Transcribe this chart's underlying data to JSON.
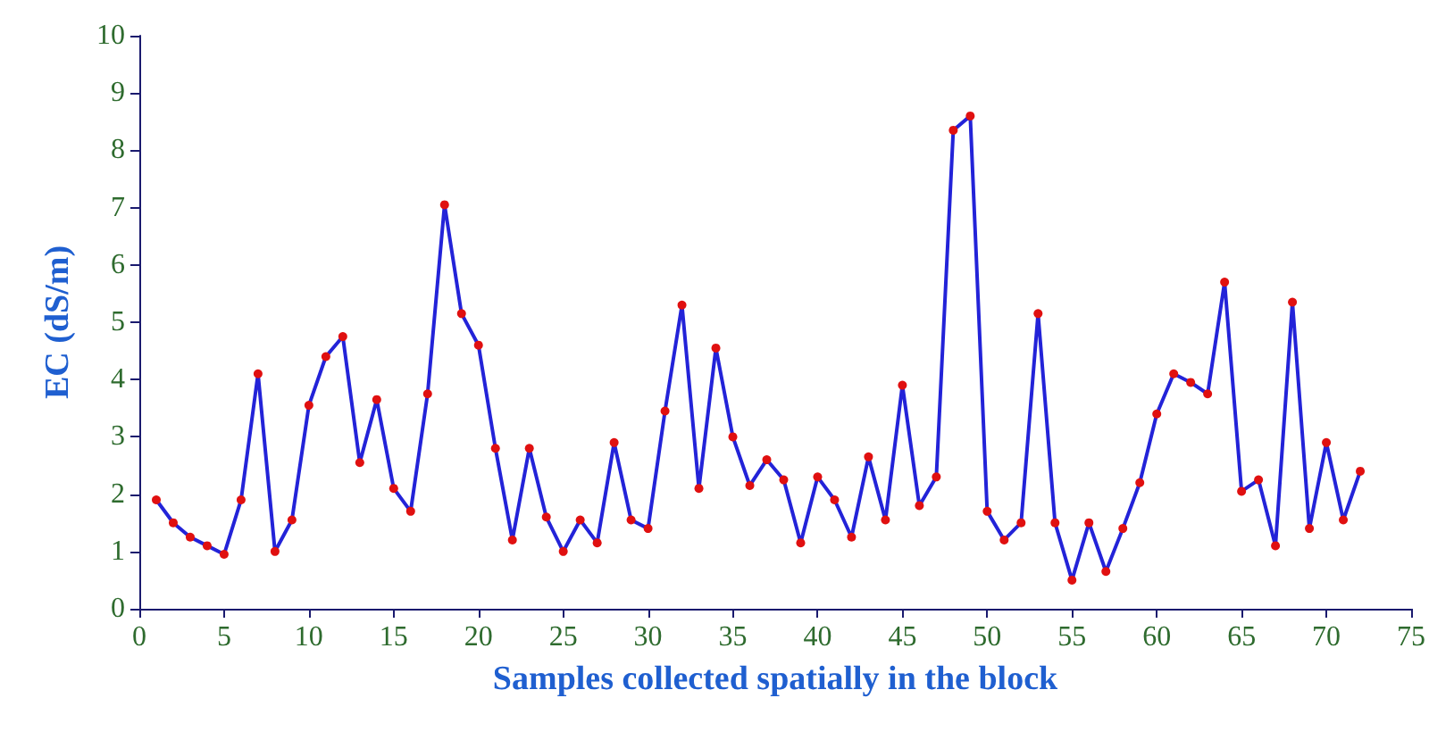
{
  "chart_data": {
    "type": "line",
    "xlabel": "Samples collected spatially in the block",
    "ylabel": "EC (dS/m)",
    "x": [
      1,
      2,
      3,
      4,
      5,
      6,
      7,
      8,
      9,
      10,
      11,
      12,
      13,
      14,
      15,
      16,
      17,
      18,
      19,
      20,
      21,
      22,
      23,
      24,
      25,
      26,
      27,
      28,
      29,
      30,
      31,
      32,
      33,
      34,
      35,
      36,
      37,
      38,
      39,
      40,
      41,
      42,
      43,
      44,
      45,
      46,
      47,
      48,
      49,
      50,
      51,
      52,
      53,
      54,
      55,
      56,
      57,
      58,
      59,
      60,
      61,
      62,
      63,
      64,
      65,
      66,
      67,
      68,
      69,
      70,
      71,
      72
    ],
    "series": [
      {
        "color": "#2323d8",
        "values": [
          1.9,
          1.5,
          1.25,
          1.1,
          0.95,
          1.9,
          4.1,
          1.0,
          1.55,
          3.55,
          4.4,
          4.75,
          2.55,
          3.65,
          2.1,
          1.7,
          3.75,
          7.05,
          5.15,
          4.6,
          2.8,
          1.2,
          2.8,
          1.6,
          1.0,
          1.55,
          1.15,
          2.9,
          1.55,
          1.4,
          3.45,
          5.3,
          2.1,
          4.55,
          3.0,
          2.15,
          2.6,
          2.25,
          1.15,
          2.3,
          1.9,
          1.25,
          2.65,
          1.55,
          3.9,
          1.8,
          2.3,
          8.35,
          8.6,
          1.7,
          1.2,
          1.5,
          5.15,
          1.5,
          0.5,
          1.5,
          0.65,
          1.4,
          2.2,
          3.4,
          4.1,
          3.95,
          3.75,
          5.7,
          2.05,
          2.25,
          1.1,
          5.35,
          1.4,
          2.9,
          1.55,
          2.4
        ]
      }
    ],
    "xlim": [
      0,
      75
    ],
    "xticks": [
      0,
      5,
      10,
      15,
      20,
      25,
      30,
      35,
      40,
      45,
      50,
      55,
      60,
      65,
      70,
      75
    ],
    "ylim": [
      0,
      10
    ],
    "yticks": [
      0,
      1,
      2,
      3,
      4,
      5,
      6,
      7,
      8,
      9,
      10
    ],
    "grid": false,
    "marker": "circle",
    "line_style": "solid"
  }
}
